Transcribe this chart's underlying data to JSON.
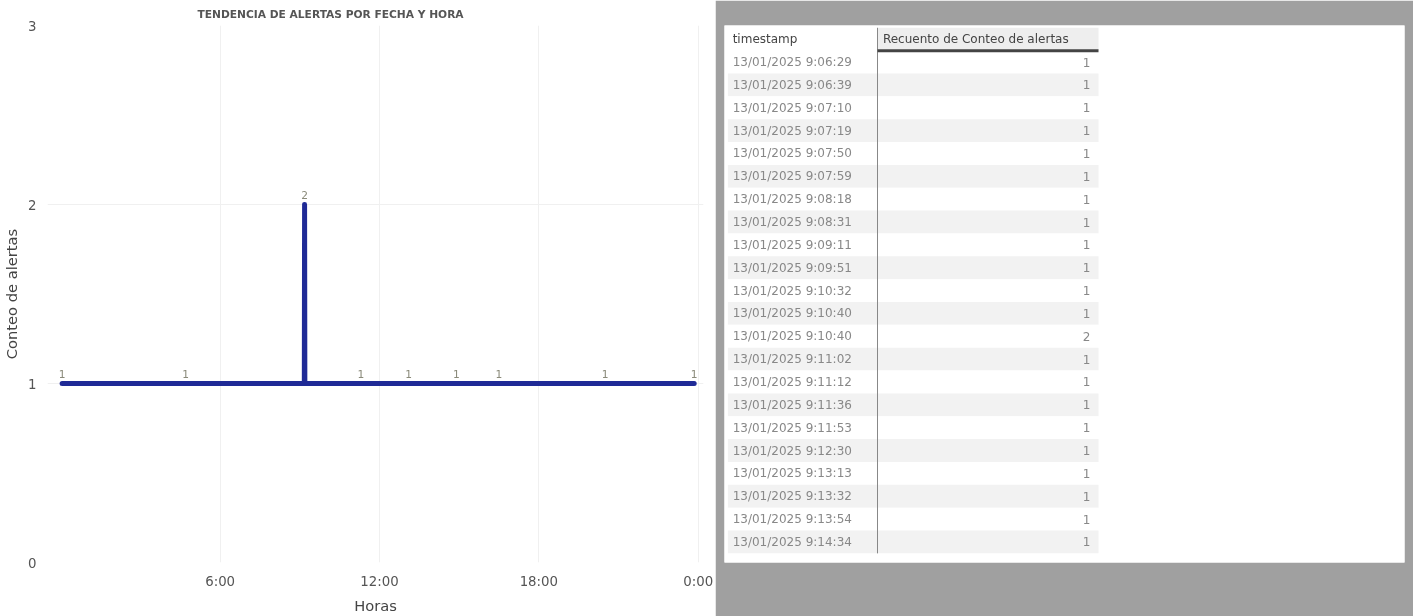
{
  "chart_data": [
    {
      "type": "line",
      "title": "TENDENCIA DE ALERTAS POR FECHA Y HORA",
      "xlabel": "Horas",
      "ylabel": "Conteo de alertas",
      "x": [
        0.05,
        4.7,
        9.17,
        9.18,
        9.19,
        11.3,
        13.1,
        14.9,
        16.5,
        20.5,
        23.85
      ],
      "series": [
        {
          "color": "#1f2a96",
          "values": [
            1,
            1,
            1,
            2,
            1,
            1,
            1,
            1,
            1,
            1,
            1
          ],
          "value_labels": [
            "1",
            "1",
            null,
            "2",
            null,
            "1",
            "1",
            "1",
            "1",
            "1",
            "1"
          ]
        }
      ],
      "xlim": [
        -0.5,
        24.2
      ],
      "xticks": [
        {
          "value": 6,
          "label": "6:00"
        },
        {
          "value": 12,
          "label": "12:00"
        },
        {
          "value": 18,
          "label": "18:00"
        },
        {
          "value": 24,
          "label": "0:00"
        }
      ],
      "ylim": [
        0,
        3
      ],
      "yticks": [
        0,
        1,
        2,
        3
      ],
      "grid": true
    },
    {
      "type": "other",
      "ylabel": "timestamp",
      "xlabel": "Recuento de Conteo de alertas",
      "categories": [
        "13/01/2025 9:06:29",
        "13/01/2025 9:06:39",
        "13/01/2025 9:07:10",
        "13/01/2025 9:07:19",
        "13/01/2025 9:07:50",
        "13/01/2025 9:07:59",
        "13/01/2025 9:08:18",
        "13/01/2025 9:08:31",
        "13/01/2025 9:09:11",
        "13/01/2025 9:09:51",
        "13/01/2025 9:10:32",
        "13/01/2025 9:10:40",
        "13/01/2025 9:10:40",
        "13/01/2025 9:11:02",
        "13/01/2025 9:11:12",
        "13/01/2025 9:11:36",
        "13/01/2025 9:11:53",
        "13/01/2025 9:12:30",
        "13/01/2025 9:13:13",
        "13/01/2025 9:13:32",
        "13/01/2025 9:13:54",
        "13/01/2025 9:14:34"
      ],
      "values": [
        1,
        1,
        1,
        1,
        1,
        1,
        1,
        1,
        1,
        1,
        1,
        1,
        2,
        1,
        1,
        1,
        1,
        1,
        1,
        1,
        1,
        1
      ],
      "data_labels": true
    }
  ]
}
